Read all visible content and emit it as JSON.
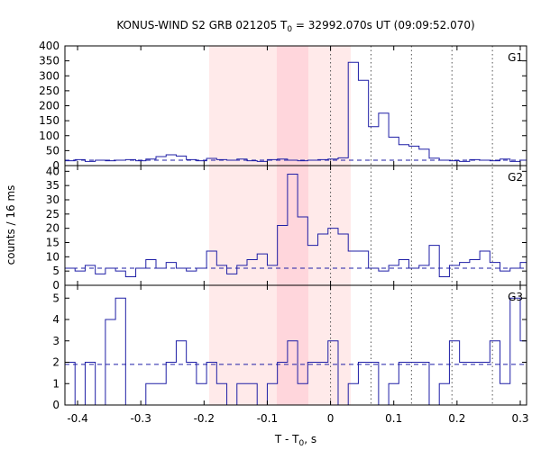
{
  "chart_data": {
    "type": "line",
    "title_prefix": "KONUS-WIND S2 GRB 021205 T",
    "title_sub": "0",
    "title_suffix": " = 32992.070s UT (09:09:52.070)",
    "xlabel_prefix": "T - T",
    "xlabel_sub": "0",
    "xlabel_suffix": ", s",
    "ylabel": "counts / 16 ms",
    "xlim": [
      -0.42,
      0.31
    ],
    "x_ticks": [
      -0.4,
      -0.3,
      -0.2,
      -0.1,
      0,
      0.1,
      0.2,
      0.3
    ],
    "x_tick_labels": [
      "-0.4",
      "-0.3",
      "-0.2",
      "-0.1",
      "0",
      "0.1",
      "0.2",
      "0.3"
    ],
    "shaded_intervals": [
      [
        -0.192,
        0.032
      ],
      [
        -0.085,
        -0.035
      ]
    ],
    "vertical_dotted_lines": [
      0,
      0.064,
      0.128,
      0.192,
      0.256
    ],
    "panels": [
      {
        "label": "G1",
        "ylim": [
          0,
          400
        ],
        "y_ticks": [
          0,
          50,
          100,
          150,
          200,
          250,
          300,
          350,
          400
        ],
        "y_tick_labels": [
          "0",
          "50",
          "100",
          "150",
          "200",
          "250",
          "300",
          "350",
          "400"
        ],
        "background_level": 18,
        "bin_start": -0.42,
        "bin_width": 0.016,
        "counts": [
          16,
          20,
          14,
          18,
          16,
          18,
          20,
          16,
          22,
          30,
          36,
          32,
          20,
          16,
          24,
          20,
          18,
          22,
          16,
          14,
          20,
          22,
          18,
          16,
          18,
          20,
          22,
          26,
          345,
          285,
          130,
          175,
          95,
          70,
          65,
          55,
          25,
          18,
          16,
          14,
          20,
          18,
          16,
          22,
          14,
          18
        ]
      },
      {
        "label": "G2",
        "ylim": [
          0,
          42
        ],
        "y_ticks": [
          0,
          5,
          10,
          15,
          20,
          25,
          30,
          35,
          40
        ],
        "y_tick_labels": [
          "0",
          "5",
          "10",
          "15",
          "20",
          "25",
          "30",
          "35",
          "40"
        ],
        "background_level": 6,
        "bin_start": -0.42,
        "bin_width": 0.016,
        "counts": [
          6,
          5,
          7,
          4,
          6,
          5,
          3,
          6,
          9,
          6,
          8,
          6,
          5,
          6,
          12,
          7,
          4,
          7,
          9,
          11,
          7,
          21,
          39,
          24,
          14,
          18,
          20,
          18,
          12,
          12,
          6,
          5,
          7,
          9,
          6,
          7,
          14,
          3,
          7,
          8,
          9,
          12,
          8,
          5,
          6,
          8
        ]
      },
      {
        "label": "G3",
        "ylim": [
          0,
          5.6
        ],
        "y_ticks": [
          0,
          1,
          2,
          3,
          4,
          5
        ],
        "y_tick_labels": [
          "0",
          "1",
          "2",
          "3",
          "4",
          "5"
        ],
        "background_level": 1.9,
        "bin_start": -0.42,
        "bin_width": 0.016,
        "counts": [
          2,
          0,
          2,
          0,
          4,
          5,
          0,
          0,
          1,
          1,
          2,
          3,
          2,
          1,
          2,
          1,
          0,
          1,
          1,
          0,
          1,
          2,
          3,
          1,
          2,
          2,
          3,
          0,
          1,
          2,
          2,
          0,
          1,
          2,
          2,
          2,
          0,
          1,
          3,
          2,
          2,
          2,
          3,
          1,
          5,
          3
        ]
      }
    ]
  },
  "colors": {
    "series": "#1f1fa6",
    "background_line": "#1f1fa6",
    "shade_outer": "#ffeaea",
    "shade_inner": "#ffd6dc",
    "grid_dotted": "#555555",
    "axes": "#000000"
  }
}
